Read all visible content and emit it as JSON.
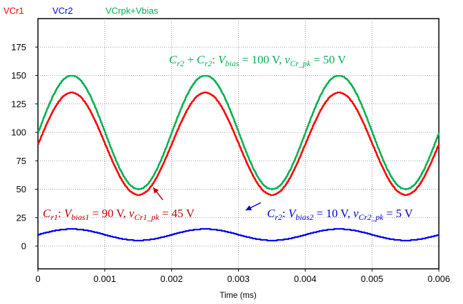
{
  "chart_data": {
    "type": "line",
    "xlabel": "Time (ms)",
    "ylabel": "",
    "xlim": [
      0,
      0.006
    ],
    "ylim": [
      -20,
      200
    ],
    "grid": true,
    "legend_position": "top-left, above plot",
    "xticks": [
      "0",
      "0.001",
      "0.002",
      "0.003",
      "0.004",
      "0.005",
      "0.006"
    ],
    "yticks": [
      "0",
      "25",
      "50",
      "75",
      "100",
      "125",
      "150",
      "175"
    ],
    "series": [
      {
        "name": "VCr1",
        "color": "#ff0000",
        "offset": 90,
        "amplitude": 45,
        "period": 0.002
      },
      {
        "name": "VCr2",
        "color": "#0000ff",
        "offset": 10,
        "amplitude": 5,
        "period": 0.002
      },
      {
        "name": "VCrpk+Vbias",
        "color": "#00b050",
        "offset": 100,
        "amplitude": 50,
        "period": 0.002
      }
    ],
    "annotations": {
      "green": {
        "color": "#00b050",
        "parts": [
          [
            "C",
            "n"
          ],
          [
            "r2",
            "s"
          ],
          [
            " + ",
            "n"
          ],
          [
            "C",
            "n"
          ],
          [
            "r2",
            "s"
          ],
          [
            ": ",
            "n"
          ],
          [
            "V",
            "n"
          ],
          [
            "bias",
            "s"
          ],
          [
            " = 100 V, ",
            "n"
          ],
          [
            "v",
            "n"
          ],
          [
            "Cr_pk",
            "s"
          ],
          [
            " = 50 V",
            "n"
          ]
        ]
      },
      "red": {
        "color": "#c00000",
        "parts": [
          [
            "C",
            "n"
          ],
          [
            "r1",
            "s"
          ],
          [
            ": ",
            "n"
          ],
          [
            "V",
            "n"
          ],
          [
            "bias1",
            "s"
          ],
          [
            " = 90 V, ",
            "n"
          ],
          [
            "v",
            "n"
          ],
          [
            "Cr1_pk",
            "s"
          ],
          [
            " = 45 V",
            "n"
          ]
        ]
      },
      "blue": {
        "color": "#0000cc",
        "parts": [
          [
            "C",
            "n"
          ],
          [
            "r2",
            "s"
          ],
          [
            ": ",
            "n"
          ],
          [
            "V",
            "n"
          ],
          [
            "bias2",
            "s"
          ],
          [
            " = 10 V, ",
            "n"
          ],
          [
            "v",
            "n"
          ],
          [
            "Cr2_pk",
            "s"
          ],
          [
            " = 5 V",
            "n"
          ]
        ]
      }
    }
  }
}
